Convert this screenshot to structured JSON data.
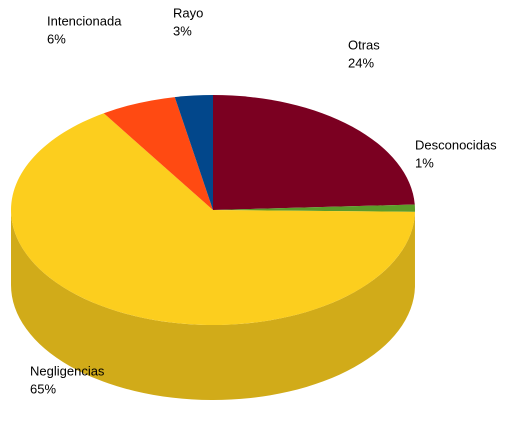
{
  "chart_data": {
    "type": "pie",
    "categories": [
      "Otras",
      "Desconocidas",
      "Negligencias",
      "Intencionada",
      "Rayo"
    ],
    "values": [
      24,
      1,
      65,
      6,
      3
    ],
    "value_labels": [
      "24%",
      "1%",
      "65%",
      "6%",
      "3%"
    ],
    "colors": [
      "#7b0021",
      "#5c9c2a",
      "#fcce1e",
      "#ff4a12",
      "#02478b"
    ]
  }
}
